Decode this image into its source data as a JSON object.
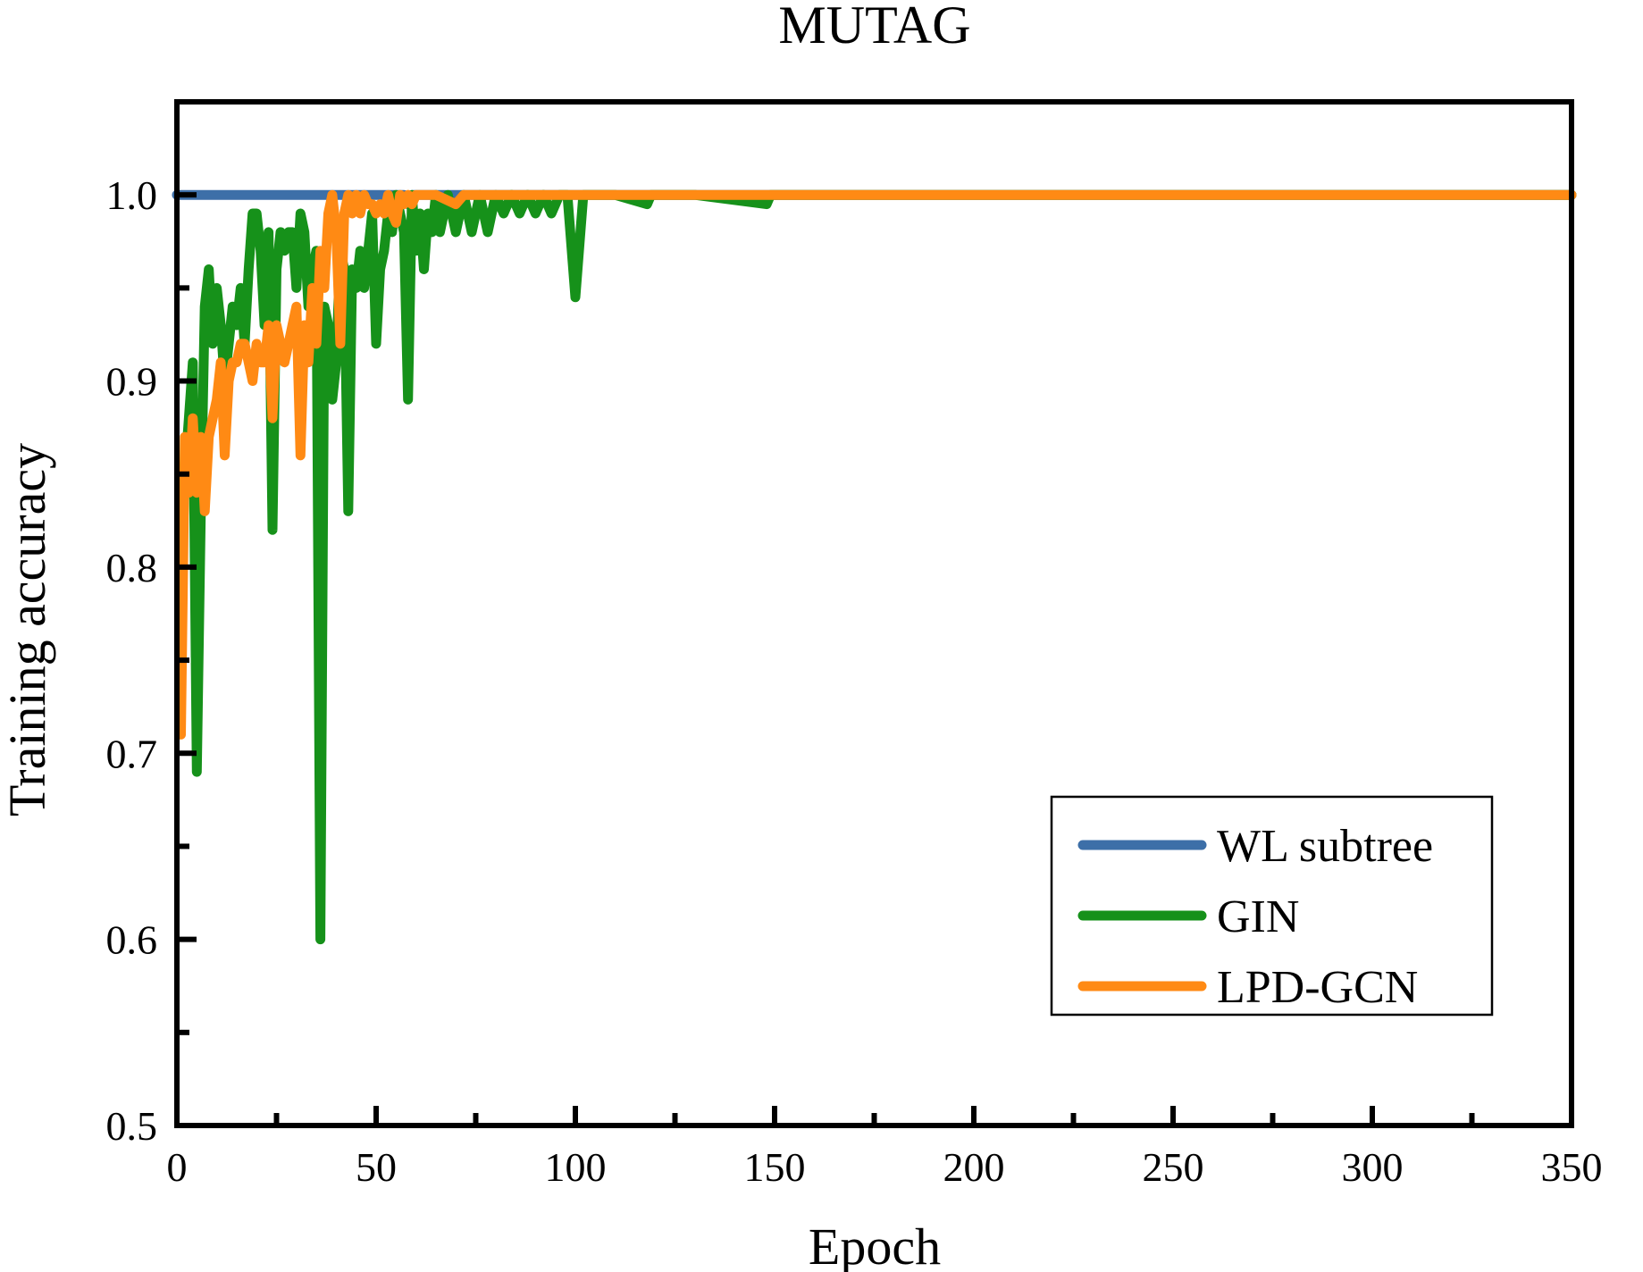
{
  "chart_data": {
    "type": "line",
    "title": "MUTAG",
    "xlabel": "Epoch",
    "ylabel": "Training accuracy",
    "xlim": [
      0,
      350
    ],
    "ylim": [
      0.5,
      1.05
    ],
    "grid": false,
    "legend_position": "bottom-right",
    "xticks": [
      0,
      50,
      100,
      150,
      200,
      250,
      300,
      350
    ],
    "xtick_labels": [
      "0",
      "50",
      "100",
      "150",
      "200",
      "250",
      "300",
      "350"
    ],
    "yticks": [
      0.5,
      0.6,
      0.7,
      0.8,
      0.9,
      1.0
    ],
    "ytick_labels": [
      "0.5",
      "0.6",
      "0.7",
      "0.8",
      "0.9",
      "1.0"
    ],
    "series": [
      {
        "name": "WL subtree",
        "color": "#3d6fa8",
        "x": [
          0,
          57,
          58,
          59,
          350
        ],
        "y": [
          1.0,
          1.0,
          0.995,
          1.0,
          1.0
        ]
      },
      {
        "name": "GIN",
        "color": "#16911a",
        "x": [
          1,
          2,
          3,
          4,
          5,
          6,
          7,
          8,
          9,
          10,
          11,
          12,
          13,
          14,
          15,
          16,
          17,
          18,
          19,
          20,
          21,
          22,
          23,
          24,
          25,
          26,
          27,
          28,
          29,
          30,
          31,
          32,
          33,
          34,
          35,
          36,
          37,
          38,
          39,
          40,
          41,
          42,
          43,
          44,
          45,
          46,
          47,
          48,
          49,
          50,
          51,
          52,
          53,
          54,
          55,
          56,
          57,
          58,
          59,
          60,
          61,
          62,
          63,
          64,
          65,
          66,
          67,
          68,
          70,
          72,
          74,
          76,
          78,
          80,
          82,
          84,
          86,
          88,
          90,
          92,
          94,
          96,
          98,
          100,
          102,
          104,
          110,
          118,
          119,
          120,
          130,
          148,
          149,
          150,
          160,
          200,
          250,
          300,
          350
        ],
        "y": [
          0.78,
          0.85,
          0.88,
          0.91,
          0.69,
          0.83,
          0.94,
          0.96,
          0.92,
          0.95,
          0.93,
          0.9,
          0.92,
          0.94,
          0.93,
          0.95,
          0.92,
          0.96,
          0.99,
          0.99,
          0.97,
          0.93,
          0.98,
          0.82,
          0.96,
          0.98,
          0.97,
          0.98,
          0.98,
          0.95,
          0.99,
          0.98,
          0.94,
          0.96,
          0.97,
          0.6,
          0.94,
          0.93,
          0.89,
          0.91,
          0.97,
          0.96,
          0.83,
          0.96,
          0.95,
          0.97,
          0.95,
          0.97,
          0.99,
          0.92,
          0.96,
          0.97,
          0.99,
          0.98,
          1.0,
          0.99,
          0.98,
          0.89,
          1.0,
          0.97,
          0.99,
          0.96,
          0.99,
          0.98,
          1.0,
          0.98,
          0.99,
          1.0,
          0.98,
          1.0,
          0.98,
          1.0,
          0.98,
          1.0,
          0.99,
          1.0,
          0.99,
          1.0,
          0.99,
          1.0,
          0.99,
          1.0,
          1.0,
          0.945,
          1.0,
          1.0,
          1.0,
          0.995,
          1.0,
          1.0,
          1.0,
          0.995,
          1.0,
          1.0,
          1.0,
          1.0,
          1.0,
          1.0,
          1.0
        ]
      },
      {
        "name": "LPD-GCN",
        "color": "#ff8a14",
        "x": [
          1,
          2,
          3,
          4,
          5,
          6,
          7,
          8,
          9,
          10,
          11,
          12,
          13,
          14,
          15,
          16,
          17,
          18,
          19,
          20,
          21,
          22,
          23,
          24,
          25,
          26,
          27,
          28,
          29,
          30,
          31,
          32,
          33,
          34,
          35,
          36,
          37,
          38,
          39,
          40,
          41,
          42,
          43,
          44,
          45,
          46,
          47,
          48,
          49,
          50,
          51,
          52,
          53,
          54,
          55,
          56,
          57,
          58,
          59,
          60,
          62,
          65,
          70,
          72,
          74,
          80,
          100,
          150,
          200,
          250,
          300,
          350
        ],
        "y": [
          0.71,
          0.87,
          0.84,
          0.88,
          0.84,
          0.87,
          0.83,
          0.87,
          0.88,
          0.89,
          0.91,
          0.86,
          0.9,
          0.91,
          0.91,
          0.92,
          0.92,
          0.91,
          0.9,
          0.92,
          0.91,
          0.91,
          0.93,
          0.88,
          0.93,
          0.92,
          0.91,
          0.92,
          0.93,
          0.94,
          0.86,
          0.93,
          0.91,
          0.95,
          0.92,
          0.97,
          0.95,
          0.99,
          1.0,
          0.98,
          0.92,
          0.99,
          1.0,
          0.99,
          1.0,
          0.99,
          1.0,
          0.995,
          0.995,
          0.99,
          0.995,
          0.99,
          1.0,
          0.99,
          0.985,
          1.0,
          0.995,
          1.0,
          0.995,
          1.0,
          1.0,
          1.0,
          0.995,
          1.0,
          1.0,
          1.0,
          1.0,
          1.0,
          1.0,
          1.0,
          1.0,
          1.0
        ]
      }
    ]
  }
}
